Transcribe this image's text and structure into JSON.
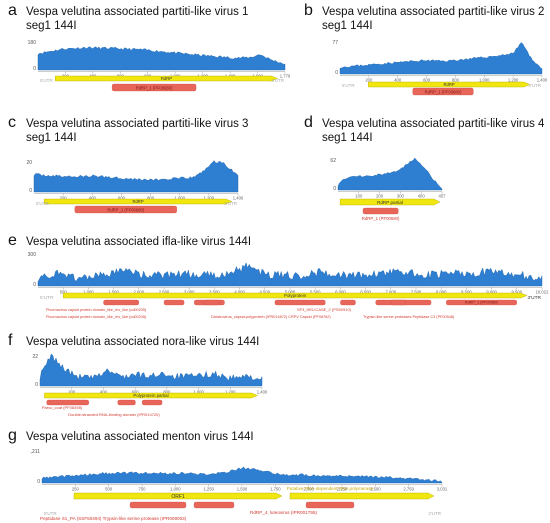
{
  "panels": [
    {
      "letter": "a",
      "title1": "Vespa velutina associated partiti-like virus 1",
      "title2": "seg1 144I",
      "ymax": "180",
      "ymin": "0",
      "ticks": [
        "200",
        "400",
        "600",
        "800",
        "1,000",
        "1,200",
        "1,400",
        "1,600",
        "1,779"
      ],
      "utr5": "5'UTR",
      "utr3": "3'UTR",
      "genes": [
        "RdRP"
      ],
      "domains": [
        "RdRP_1 (PF00680)"
      ]
    },
    {
      "letter": "b",
      "title1": "Vespa velutina associated partiti-like virus 2",
      "title2": "seg1 144I",
      "ymax": "77",
      "ymin": "0",
      "ticks": [
        "200",
        "400",
        "600",
        "800",
        "1,000",
        "1,200",
        "1,400"
      ],
      "utr5": "5'UTR",
      "utr3": "3'UTR",
      "genes": [
        "RdRP"
      ],
      "domains": [
        "RdRP_1 (PF00680)"
      ]
    },
    {
      "letter": "c",
      "title1": "Vespa velutina associated partiti-like virus 3",
      "title2": "seg1 144I",
      "ymax": "20",
      "ymin": "0",
      "ticks": [
        "200",
        "400",
        "600",
        "800",
        "1,000",
        "1,200",
        "1,400"
      ],
      "utr5": "5'UTR",
      "utr3": "3'UTR",
      "genes": [
        "RdRP"
      ],
      "domains": [
        "RdRP_1 (PF00680)"
      ]
    },
    {
      "letter": "d",
      "title1": "Vespa velutina associated partiti-like virus 4",
      "title2": "seg1 144I",
      "ymax": "162",
      "ymin": "0",
      "ticks": [
        "100",
        "200",
        "300",
        "400",
        "457"
      ],
      "utr5": "",
      "utr3": "",
      "genes": [
        "RdRP partial"
      ],
      "domains": [
        "RdRP_1 (PF00680)"
      ]
    },
    {
      "letter": "e",
      "title1": "Vespa velutina associated ifla-like virus 144I",
      "title2": "",
      "ymax": "300",
      "ymin": "0",
      "ticks": [
        "500",
        "1,000",
        "1,500",
        "2,000",
        "2,500",
        "3,000",
        "3,500",
        "4,000",
        "4,500",
        "5,000",
        "5,500",
        "6,000",
        "6,500",
        "7,000",
        "7,500",
        "8,000",
        "8,500",
        "9,000",
        "9,500",
        "10,022"
      ],
      "utr5": "5'UTR",
      "utr3": "3'UTR",
      "genes": [
        "Polyprotein"
      ],
      "domains": [
        "SF3_HELICASE_2 (PS50910)",
        "Picornavirus capsid protein domain_like_rhv_like (cd00205)",
        "Picornavirus capsid protein domain_like_rhv_like (cd00205)",
        "Dicistrovirus_capsid-polyprotein (IPR014872) CRPV Capsid (PF08762)",
        "Trypsin-like serine proteases Peptidase C3 (PF00548)",
        "RdRP_1 (PF00680)"
      ]
    },
    {
      "letter": "f",
      "title1": "Vespa velutina associated nora-like virus 144I",
      "title2": "",
      "ymax": "22",
      "ymin": "0",
      "ticks": [
        "200",
        "400",
        "600",
        "800",
        "1,000",
        "1,200",
        "1,400"
      ],
      "utr5": "",
      "utr3": "",
      "genes": [
        "Polyprotein partial"
      ],
      "domains": [
        "Parvo_coat (PF08398)",
        "Double-stranded RNA-binding domain (IPR014720)"
      ]
    },
    {
      "letter": "g",
      "title1": "Vespa velutina associated menton virus 144I",
      "title2": "",
      "ymax": "1,211",
      "ymin": "0",
      "ticks": [
        "250",
        "500",
        "750",
        "1,000",
        "1,250",
        "1,500",
        "1,750",
        "2,000",
        "2,250",
        "2,500",
        "2,750",
        "3,031"
      ],
      "utr5": "5'UTR",
      "utr3": "3'UTR",
      "genes": [
        "ORF1",
        "Putative RNA-dependent RNA polymerase"
      ],
      "domains": [
        "Peptidase S1_PA  (SSF50494) Trypsin-like serine protease (IPR009003)",
        "RdRP_4, luteovirus (IPR001795)"
      ]
    }
  ],
  "colors": {
    "coverage": "#2e7fd1",
    "coverage_edge": "#1b5fa8",
    "gene": "#f0e610",
    "gene_edge": "#b8a900",
    "domain": "#e8655a",
    "domain_label": "#d23a30",
    "gene_label_g": "#c9a800",
    "utr": "#aaaaaa"
  }
}
